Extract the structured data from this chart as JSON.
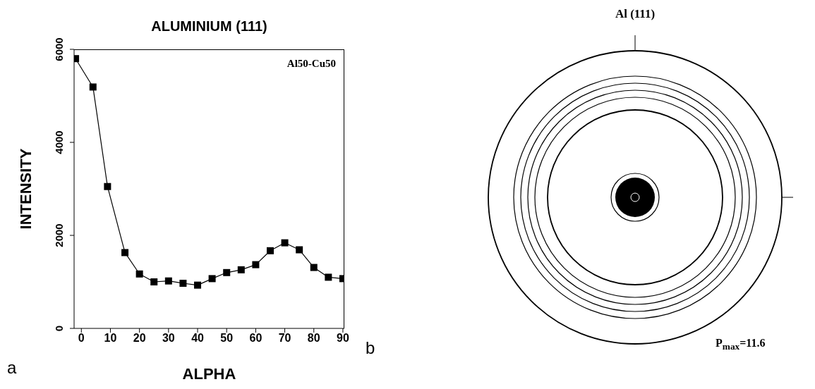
{
  "chart_data": [
    {
      "type": "line",
      "title": "ALUMINIUM (111)",
      "xlabel": "ALPHA",
      "ylabel": "INTENSITY",
      "annotations": [
        "Al50-Cu50",
        "a"
      ],
      "x": [
        -2,
        4,
        9,
        15,
        20,
        25,
        30,
        35,
        40,
        45,
        50,
        55,
        60,
        65,
        70,
        75,
        80,
        85,
        90
      ],
      "series": [
        {
          "color": "#000000",
          "values": [
            5800,
            5190,
            3050,
            1630,
            1170,
            1000,
            1020,
            970,
            930,
            1070,
            1200,
            1260,
            1370,
            1670,
            1840,
            1690,
            1310,
            1100,
            1070
          ]
        }
      ],
      "xlim": [
        -2.5,
        90.5
      ],
      "ylim": [
        0,
        6000
      ],
      "xticks": [
        0,
        10,
        20,
        30,
        40,
        50,
        60,
        70,
        80,
        90
      ],
      "yticks": [
        0,
        2000,
        4000,
        6000
      ],
      "marker": "square",
      "grid": false
    },
    {
      "type": "other",
      "title": "Al (111)",
      "annotations": [
        "P$_{max}$=11.6",
        "b"
      ]
    }
  ]
}
